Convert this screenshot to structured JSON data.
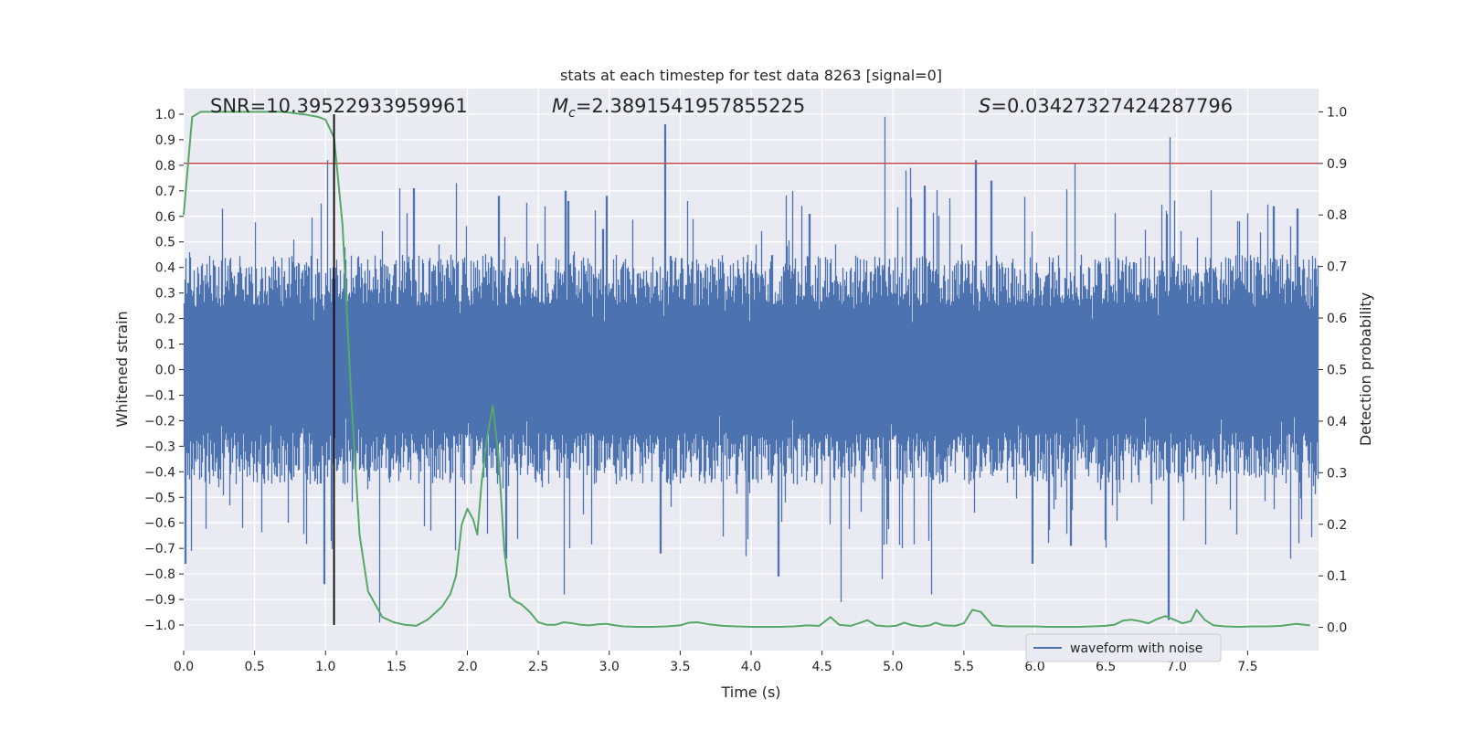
{
  "chart_data": {
    "type": "line",
    "title": "stats at each timestep for test data 8263 [signal=0]",
    "xlabel": "Time (s)",
    "ylabel_left": "Whitened strain",
    "ylabel_right": "Detection probability",
    "xlim": [
      0.0,
      8.0
    ],
    "ylim_left": [
      -1.1,
      1.1
    ],
    "ylim_right": [
      -0.045,
      1.045
    ],
    "xticks": [
      "0.0",
      "0.5",
      "1.0",
      "1.5",
      "2.0",
      "2.5",
      "3.0",
      "3.5",
      "4.0",
      "4.5",
      "5.0",
      "5.5",
      "6.0",
      "6.5",
      "7.0",
      "7.5"
    ],
    "yticks_left": [
      "1.0",
      "0.9",
      "0.8",
      "0.7",
      "0.6",
      "0.5",
      "0.4",
      "0.3",
      "0.2",
      "0.1",
      "0.0",
      "−0.1",
      "−0.2",
      "−0.3",
      "−0.4",
      "−0.5",
      "−0.6",
      "−0.7",
      "−0.8",
      "−0.9",
      "−1.0"
    ],
    "yticks_right": [
      "1.0",
      "0.9",
      "0.8",
      "0.7",
      "0.6",
      "0.5",
      "0.4",
      "0.3",
      "0.2",
      "0.1",
      "0.0"
    ],
    "grid": true,
    "legend": {
      "position": "lower-right",
      "entries": [
        "waveform with noise"
      ]
    },
    "annotations": {
      "snr": "SNR=10.39522933959961",
      "mc_symbol": "M",
      "mc_sub": "c",
      "mc_value": "=2.3891541957855225",
      "s_symbol": "S",
      "s_value": "=0.03427327424287796"
    },
    "threshold": {
      "axis": "right",
      "value": 0.9,
      "color": "#c44e52"
    },
    "vline": {
      "x": 1.06,
      "y_range_left": [
        -1.0,
        1.0
      ],
      "color": "#000000"
    },
    "series": [
      {
        "name": "waveform with noise",
        "axis": "left",
        "color": "#4c72b0",
        "sample_rate": 2048,
        "duration": 8.0,
        "envelope": {
          "typical_peak": 0.45,
          "peak_range": [
            0.18,
            0.72
          ]
        },
        "spikes": [
          {
            "x": 0.01,
            "y": -0.76
          },
          {
            "x": 0.05,
            "y": -0.71
          },
          {
            "x": 0.27,
            "y": 0.63
          },
          {
            "x": 1.01,
            "y": 0.82
          },
          {
            "x": 0.99,
            "y": -0.84
          },
          {
            "x": 1.04,
            "y": -0.67
          },
          {
            "x": 1.38,
            "y": -0.99
          },
          {
            "x": 1.52,
            "y": 0.71
          },
          {
            "x": 1.62,
            "y": 0.71
          },
          {
            "x": 1.92,
            "y": 0.73
          },
          {
            "x": 2.22,
            "y": 0.68
          },
          {
            "x": 2.27,
            "y": -0.74
          },
          {
            "x": 2.68,
            "y": -0.88
          },
          {
            "x": 2.71,
            "y": 0.66
          },
          {
            "x": 2.69,
            "y": 0.7
          },
          {
            "x": 2.98,
            "y": 0.68
          },
          {
            "x": 3.39,
            "y": 0.96
          },
          {
            "x": 3.36,
            "y": -0.72
          },
          {
            "x": 3.55,
            "y": 0.66
          },
          {
            "x": 3.96,
            "y": -0.73
          },
          {
            "x": 4.19,
            "y": -0.81
          },
          {
            "x": 4.41,
            "y": 0.61
          },
          {
            "x": 4.63,
            "y": -0.91
          },
          {
            "x": 4.94,
            "y": 0.99
          },
          {
            "x": 4.92,
            "y": -0.82
          },
          {
            "x": 5.09,
            "y": 0.78
          },
          {
            "x": 5.12,
            "y": 0.79
          },
          {
            "x": 5.22,
            "y": 0.72
          },
          {
            "x": 5.27,
            "y": -0.88
          },
          {
            "x": 5.58,
            "y": 0.82
          },
          {
            "x": 5.69,
            "y": 0.74
          },
          {
            "x": 5.98,
            "y": -0.76
          },
          {
            "x": 6.28,
            "y": 0.81
          },
          {
            "x": 6.25,
            "y": -0.69
          },
          {
            "x": 6.95,
            "y": 0.91
          },
          {
            "x": 6.94,
            "y": -0.98
          },
          {
            "x": 7.68,
            "y": 0.64
          },
          {
            "x": 7.85,
            "y": 0.63
          },
          {
            "x": 7.8,
            "y": -0.74
          }
        ]
      },
      {
        "name": "",
        "axis": "right",
        "color": "#55a868",
        "x": [
          0.0,
          0.06,
          0.12,
          0.2,
          0.3,
          0.5,
          0.7,
          0.85,
          0.95,
          1.0,
          1.06,
          1.12,
          1.18,
          1.24,
          1.3,
          1.4,
          1.48,
          1.56,
          1.64,
          1.72,
          1.78,
          1.82,
          1.88,
          1.92,
          1.96,
          2.0,
          2.04,
          2.07,
          2.1,
          2.14,
          2.18,
          2.22,
          2.26,
          2.3,
          2.34,
          2.38,
          2.44,
          2.5,
          2.56,
          2.62,
          2.68,
          2.74,
          2.8,
          2.86,
          2.92,
          2.98,
          3.04,
          3.1,
          3.2,
          3.3,
          3.4,
          3.5,
          3.56,
          3.62,
          3.7,
          3.8,
          3.9,
          4.0,
          4.1,
          4.2,
          4.3,
          4.4,
          4.48,
          4.56,
          4.62,
          4.7,
          4.76,
          4.82,
          4.88,
          4.96,
          5.02,
          5.08,
          5.14,
          5.2,
          5.26,
          5.3,
          5.36,
          5.44,
          5.5,
          5.56,
          5.62,
          5.7,
          5.8,
          5.9,
          6.0,
          6.1,
          6.2,
          6.3,
          6.4,
          6.5,
          6.56,
          6.62,
          6.68,
          6.74,
          6.8,
          6.86,
          6.92,
          6.98,
          7.04,
          7.1,
          7.14,
          7.2,
          7.26,
          7.34,
          7.44,
          7.54,
          7.64,
          7.74,
          7.84,
          7.94
        ],
        "y": [
          0.8,
          0.99,
          1.0,
          1.0,
          1.0,
          1.0,
          1.0,
          0.995,
          0.99,
          0.985,
          0.95,
          0.78,
          0.45,
          0.18,
          0.07,
          0.02,
          0.01,
          0.005,
          0.003,
          0.015,
          0.03,
          0.04,
          0.065,
          0.1,
          0.2,
          0.23,
          0.21,
          0.18,
          0.28,
          0.37,
          0.43,
          0.33,
          0.15,
          0.06,
          0.05,
          0.045,
          0.03,
          0.01,
          0.005,
          0.005,
          0.01,
          0.008,
          0.005,
          0.004,
          0.006,
          0.007,
          0.004,
          0.002,
          0.001,
          0.001,
          0.002,
          0.004,
          0.009,
          0.01,
          0.006,
          0.003,
          0.002,
          0.001,
          0.001,
          0.001,
          0.002,
          0.004,
          0.003,
          0.02,
          0.005,
          0.003,
          0.008,
          0.014,
          0.004,
          0.002,
          0.003,
          0.009,
          0.004,
          0.002,
          0.004,
          0.009,
          0.004,
          0.003,
          0.008,
          0.034,
          0.03,
          0.004,
          0.002,
          0.002,
          0.002,
          0.001,
          0.001,
          0.001,
          0.002,
          0.003,
          0.005,
          0.013,
          0.015,
          0.012,
          0.008,
          0.016,
          0.022,
          0.015,
          0.008,
          0.012,
          0.034,
          0.014,
          0.004,
          0.002,
          0.001,
          0.002,
          0.002,
          0.003,
          0.007,
          0.004
        ]
      }
    ]
  }
}
